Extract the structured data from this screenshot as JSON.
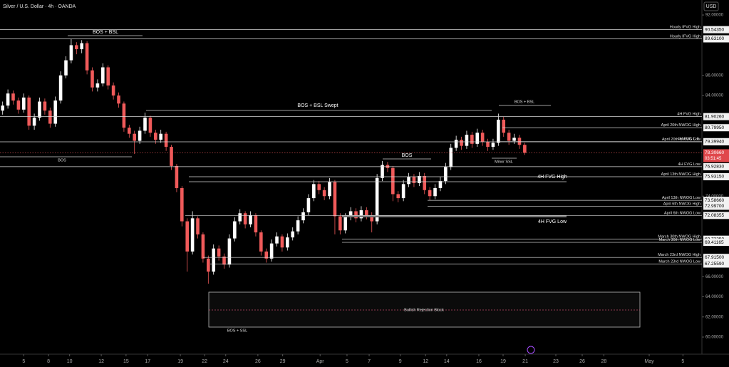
{
  "chart_data": {
    "type": "candlestick",
    "title": "Silver / U.S. Dollar · 4h · OANDA",
    "currency": "USD",
    "up_color": "#ffffff",
    "down_color": "#f05a5a",
    "ylim": [
      58.3,
      93.49
    ],
    "yticks": [
      {
        "value": 92,
        "label": "92.00000"
      },
      {
        "value": 86,
        "label": "86.00000"
      },
      {
        "value": 84,
        "label": "84.00000"
      },
      {
        "value": 74,
        "label": "74.00000"
      },
      {
        "value": 66,
        "label": "66.00000"
      },
      {
        "value": 64,
        "label": "64.00000"
      },
      {
        "value": 62,
        "label": "62.00000"
      },
      {
        "value": 60,
        "label": "60.00000"
      }
    ],
    "xlim": [
      -0.5,
      132.6
    ],
    "xticks": [
      {
        "value": 4.0,
        "label": "5"
      },
      {
        "value": 8.7,
        "label": "8"
      },
      {
        "value": 12.7,
        "label": "10"
      },
      {
        "value": 18.7,
        "label": "12"
      },
      {
        "value": 23.4,
        "label": "15"
      },
      {
        "value": 27.5,
        "label": "17"
      },
      {
        "value": 33.7,
        "label": "19"
      },
      {
        "value": 38.3,
        "label": "22"
      },
      {
        "value": 42.3,
        "label": "24"
      },
      {
        "value": 48.4,
        "label": "26"
      },
      {
        "value": 53.1,
        "label": "29"
      },
      {
        "value": 60.2,
        "label": "Apr"
      },
      {
        "value": 65.3,
        "label": "5"
      },
      {
        "value": 69.5,
        "label": "7"
      },
      {
        "value": 75.4,
        "label": "9"
      },
      {
        "value": 80.2,
        "label": "12"
      },
      {
        "value": 84.2,
        "label": "14"
      },
      {
        "value": 90.3,
        "label": "16"
      },
      {
        "value": 94.9,
        "label": "19"
      },
      {
        "value": 99.1,
        "label": "21"
      },
      {
        "value": 104.9,
        "label": "23"
      },
      {
        "value": 109.9,
        "label": "26"
      },
      {
        "value": 114.0,
        "label": "28"
      },
      {
        "value": 122.6,
        "label": "May"
      },
      {
        "value": 129.0,
        "label": "5"
      }
    ],
    "x": [
      0,
      1,
      2,
      3,
      4,
      5,
      6,
      7,
      8,
      9,
      10,
      11,
      12,
      13,
      14,
      15,
      16,
      17,
      18,
      19,
      20,
      21,
      22,
      23,
      24,
      25,
      26,
      27,
      28,
      29,
      30,
      31,
      32,
      33,
      34,
      35,
      36,
      37,
      38,
      39,
      40,
      41,
      42,
      43,
      44,
      45,
      46,
      47,
      48,
      49,
      50,
      51,
      52,
      53,
      54,
      55,
      56,
      57,
      58,
      59,
      60,
      61,
      62,
      63,
      64,
      65,
      66,
      67,
      68,
      69,
      70,
      71,
      72,
      73,
      74,
      75,
      76,
      77,
      78,
      79,
      80,
      81,
      82,
      83,
      84,
      85,
      86,
      87,
      88,
      89,
      90,
      91,
      92,
      93,
      94,
      95,
      96,
      97,
      98,
      99
    ],
    "open": [
      82.5,
      83.0,
      84.2,
      83.5,
      82.6,
      83.8,
      81.0,
      81.8,
      83.4,
      82.5,
      81.2,
      83.5,
      86.0,
      87.5,
      89.0,
      88.6,
      89.2,
      86.5,
      84.8,
      85.2,
      86.8,
      85.0,
      84.0,
      83.2,
      80.8,
      80.2,
      79.5,
      80.5,
      81.8,
      80.3,
      79.6,
      80.2,
      78.9,
      77.0,
      74.8,
      71.5,
      68.5,
      71.8,
      70.2,
      67.8,
      66.5,
      68.8,
      68.0,
      67.2,
      69.8,
      71.5,
      72.3,
      71.2,
      72.1,
      70.4,
      68.5,
      67.8,
      69.3,
      70.0,
      68.9,
      69.9,
      70.5,
      71.6,
      72.4,
      73.8,
      75.2,
      74.6,
      74.0,
      75.4,
      72.0,
      70.6,
      71.9,
      72.5,
      71.8,
      72.6,
      72.1,
      71.5,
      75.8,
      77.1,
      76.8,
      74.2,
      73.8,
      75.2,
      75.9,
      75.3,
      76.0,
      74.6,
      74.0,
      74.8,
      75.5,
      76.9,
      78.8,
      79.6,
      79.0,
      80.1,
      79.2,
      80.3,
      79.4,
      78.9,
      79.3,
      81.6,
      80.3,
      79.5,
      79.8,
      79.1
    ],
    "high": [
      83.4,
      84.6,
      84.5,
      83.8,
      84.2,
      84.0,
      82.2,
      83.8,
      83.7,
      82.8,
      83.9,
      86.4,
      87.9,
      89.6,
      89.3,
      89.5,
      89.4,
      86.8,
      85.6,
      87.2,
      87.0,
      85.3,
      84.3,
      83.4,
      81.1,
      80.5,
      80.9,
      82.3,
      82.0,
      80.6,
      80.6,
      80.4,
      79.1,
      77.2,
      75.0,
      71.8,
      72.5,
      72.0,
      70.4,
      68.1,
      69.2,
      69.1,
      68.3,
      70.2,
      71.9,
      72.7,
      72.5,
      72.5,
      72.3,
      70.6,
      68.8,
      69.7,
      70.4,
      70.2,
      70.3,
      70.9,
      72.0,
      72.8,
      74.2,
      75.6,
      75.5,
      74.9,
      75.8,
      75.6,
      72.3,
      72.3,
      72.9,
      72.8,
      73.0,
      72.9,
      72.4,
      76.2,
      77.5,
      77.4,
      77.0,
      74.5,
      75.6,
      76.3,
      76.2,
      76.4,
      76.3,
      74.9,
      75.2,
      75.9,
      77.3,
      79.2,
      80.0,
      79.9,
      80.5,
      80.4,
      80.7,
      80.6,
      79.7,
      79.7,
      82.2,
      81.9,
      80.6,
      80.2,
      80.1,
      79.3
    ],
    "low": [
      82.1,
      82.7,
      83.1,
      82.2,
      82.3,
      80.6,
      80.6,
      81.5,
      82.1,
      80.8,
      80.9,
      83.2,
      85.7,
      87.2,
      88.1,
      88.2,
      86.1,
      84.4,
      84.4,
      84.9,
      84.6,
      83.6,
      82.8,
      80.4,
      79.8,
      78.2,
      79.2,
      80.2,
      79.9,
      79.2,
      79.3,
      78.5,
      76.6,
      74.4,
      71.0,
      66.5,
      68.2,
      69.8,
      67.4,
      65.3,
      66.2,
      67.6,
      66.8,
      66.9,
      69.5,
      71.2,
      70.8,
      70.9,
      70.0,
      68.1,
      67.4,
      67.5,
      69.0,
      68.5,
      68.6,
      69.6,
      70.2,
      71.3,
      72.1,
      73.5,
      74.2,
      73.6,
      73.7,
      70.2,
      70.2,
      70.3,
      71.6,
      71.4,
      71.5,
      71.7,
      70.4,
      71.2,
      75.5,
      76.4,
      73.5,
      73.4,
      73.5,
      74.9,
      74.9,
      75.0,
      74.2,
      73.6,
      73.7,
      74.5,
      75.2,
      76.6,
      78.5,
      78.6,
      78.7,
      78.8,
      78.9,
      79.0,
      78.5,
      78.6,
      79.0,
      79.9,
      79.1,
      79.2,
      78.7,
      78.1
    ],
    "close": [
      83.0,
      84.2,
      83.5,
      82.6,
      83.8,
      81.0,
      81.8,
      83.4,
      82.5,
      81.2,
      83.5,
      86.0,
      87.5,
      89.0,
      88.6,
      89.2,
      86.5,
      84.8,
      85.2,
      86.8,
      85.0,
      84.0,
      83.2,
      80.8,
      80.2,
      79.5,
      80.5,
      81.8,
      80.3,
      79.6,
      80.2,
      78.9,
      77.0,
      74.8,
      71.5,
      68.5,
      71.8,
      70.2,
      67.8,
      66.5,
      68.8,
      68.0,
      67.2,
      69.8,
      71.5,
      72.3,
      71.2,
      72.1,
      70.4,
      68.5,
      67.8,
      69.3,
      70.0,
      68.9,
      69.9,
      70.5,
      71.6,
      72.4,
      73.8,
      75.2,
      74.6,
      74.0,
      75.4,
      72.0,
      70.6,
      71.9,
      72.5,
      71.8,
      72.6,
      72.1,
      71.5,
      75.8,
      77.1,
      76.8,
      74.2,
      73.8,
      75.2,
      75.9,
      75.3,
      76.0,
      74.6,
      74.0,
      74.8,
      75.5,
      76.9,
      78.8,
      79.6,
      79.0,
      80.1,
      79.2,
      80.3,
      79.4,
      78.9,
      79.3,
      81.6,
      80.3,
      79.5,
      79.8,
      79.1,
      78.31
    ],
    "levels": [
      {
        "label": "Hourly IFVG High",
        "value": 90.5435,
        "price_label": "90.54350"
      },
      {
        "label": "Hourly IFVG High",
        "value": 89.631,
        "price_label": "89.63100"
      },
      {
        "label": "4H FVG High",
        "value": 81.9026,
        "price_label": "81.90260"
      },
      {
        "label": "April 20th NWOG High",
        "value": 80.7995,
        "price_label": "80.79950"
      },
      {
        "label": "4H FVG C.E.",
        "value": 79.41545,
        "price_label": "79.41545"
      },
      {
        "label": "April 20th NWOG Low",
        "value": 79.3994,
        "price_label": "79.39940"
      },
      {
        "label": "4H FVG Low",
        "value": 76.9283,
        "price_label": "76.92830"
      },
      {
        "label": "April 13th NWOG High",
        "value": 75.9315,
        "price_label": "75.93150"
      },
      {
        "label": "April 13th NWOG Low",
        "value": 73.5866,
        "price_label": "73.58660"
      },
      {
        "label": "April 6th NWOG High",
        "value": 72.997,
        "price_label": "72.99700"
      },
      {
        "label": "April 6th NWOG Low",
        "value": 72.08355,
        "price_label": "72.08355"
      },
      {
        "label": "March 30th NWOG High",
        "value": 69.7235,
        "price_label": "69.72350"
      },
      {
        "label": "March 30th NWOG Low",
        "value": 69.41165,
        "price_label": "69.41165"
      },
      {
        "label": "March 23rd NWOG High",
        "value": 67.915,
        "price_label": "67.91500"
      },
      {
        "label": "March 23rd NWOG Low",
        "value": 67.2559,
        "price_label": "67.25590"
      }
    ],
    "current_price": {
      "value": 78.3066,
      "label": "78.30660",
      "countdown": "03:51:45"
    },
    "annotations": [
      "BOS + BSL",
      "BOS + BSL Swept",
      "BOS",
      "BOS",
      "BOS + BSL",
      "Minor SSL",
      "4H FVG High",
      "4H FVG Low",
      "Bullish Rejection Block",
      "BOS + SSL"
    ]
  }
}
